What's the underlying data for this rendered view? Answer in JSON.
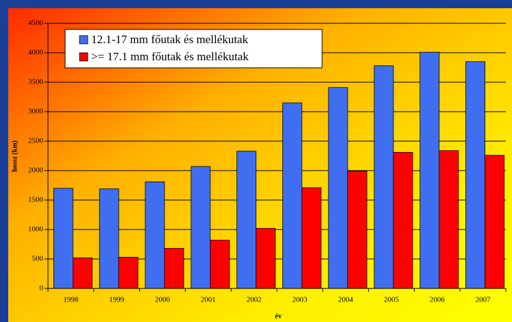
{
  "chart_data": {
    "type": "bar",
    "x_label": "év",
    "y_label": "hossz (km)",
    "categories": [
      "1998",
      "1999",
      "2000",
      "2001",
      "2002",
      "2003",
      "2004",
      "2005",
      "2006",
      "2007"
    ],
    "series": [
      {
        "name": "12.1-17 mm főutak és mellékutak",
        "color": "#3f6ff0",
        "values": [
          1700,
          1690,
          1810,
          2070,
          2330,
          3150,
          3410,
          3780,
          4010,
          3850
        ]
      },
      {
        "name": ">= 17.1 mm főutak és mellékutak",
        "color": "#ff0000",
        "values": [
          520,
          530,
          680,
          820,
          1020,
          1710,
          1990,
          2310,
          2340,
          2260
        ]
      }
    ],
    "ylim": [
      0,
      4500
    ],
    "yticks": [
      0,
      500,
      1000,
      1500,
      2000,
      2500,
      3000,
      3500,
      4000,
      4500
    ],
    "grid": true,
    "legend": "upper left"
  }
}
